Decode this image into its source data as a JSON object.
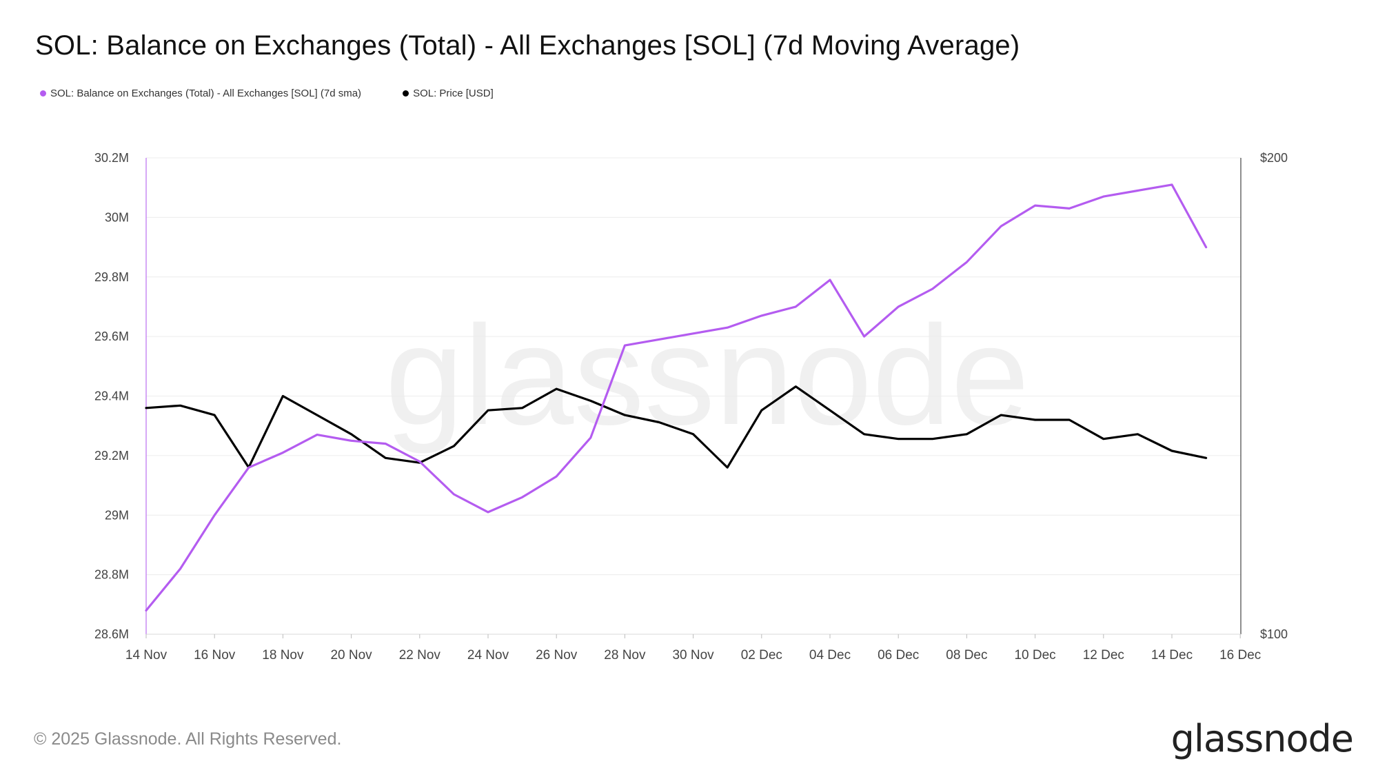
{
  "header": {
    "title": "SOL: Balance on Exchanges (Total) - All Exchanges [SOL] (7d Moving Average)"
  },
  "footer": {
    "copyright": "© 2025 Glassnode. All Rights Reserved.",
    "logo_text": "glassnode",
    "watermark": "glassnode"
  },
  "chart_data": {
    "type": "line",
    "title": "SOL: Balance on Exchanges (Total) - All Exchanges [SOL] (7d Moving Average)",
    "xlabel": "",
    "ylabel": "",
    "x": [
      "14 Nov",
      "15 Nov",
      "16 Nov",
      "17 Nov",
      "18 Nov",
      "19 Nov",
      "20 Nov",
      "21 Nov",
      "22 Nov",
      "23 Nov",
      "24 Nov",
      "25 Nov",
      "26 Nov",
      "27 Nov",
      "28 Nov",
      "29 Nov",
      "30 Nov",
      "01 Dec",
      "02 Dec",
      "03 Dec",
      "04 Dec",
      "05 Dec",
      "06 Dec",
      "07 Dec",
      "08 Dec",
      "09 Dec",
      "10 Dec",
      "11 Dec",
      "12 Dec",
      "13 Dec",
      "14 Dec",
      "15 Dec"
    ],
    "x_ticks": [
      "14 Nov",
      "16 Nov",
      "18 Nov",
      "20 Nov",
      "22 Nov",
      "24 Nov",
      "26 Nov",
      "28 Nov",
      "30 Nov",
      "02 Dec",
      "04 Dec",
      "06 Dec",
      "08 Dec",
      "10 Dec",
      "12 Dec",
      "14 Dec",
      "16 Dec"
    ],
    "y_left": {
      "min": 28.6,
      "max": 30.2,
      "ticks": [
        "28.6M",
        "28.8M",
        "29M",
        "29.2M",
        "29.4M",
        "29.6M",
        "29.8M",
        "30M",
        "30.2M"
      ],
      "tick_values": [
        28.6,
        28.8,
        29.0,
        29.2,
        29.4,
        29.6,
        29.8,
        30.0,
        30.2
      ]
    },
    "y_right": {
      "min": 100,
      "max": 200,
      "ticks": [
        "$100",
        "$200"
      ],
      "tick_values": [
        100,
        200
      ]
    },
    "series": [
      {
        "name": "SOL: Balance on Exchanges (Total) - All Exchanges [SOL] (7d sma)",
        "axis": "left",
        "unit": "M SOL",
        "color": "#b45cf0",
        "values": [
          28.68,
          28.82,
          29.0,
          29.16,
          29.21,
          29.27,
          29.25,
          29.24,
          29.18,
          29.07,
          29.01,
          29.06,
          29.13,
          29.26,
          29.57,
          29.59,
          29.61,
          29.63,
          29.67,
          29.7,
          29.79,
          29.6,
          29.7,
          29.76,
          29.85,
          29.97,
          30.04,
          30.03,
          30.07,
          30.09,
          30.11,
          29.9
        ]
      },
      {
        "name": "SOL: Price [USD]",
        "axis": "right",
        "unit": "USD",
        "color": "#000000",
        "values": [
          147.5,
          148,
          146,
          135,
          150,
          146,
          142,
          137,
          136,
          139.5,
          147,
          147.5,
          151.5,
          149,
          146,
          144.5,
          142,
          135,
          147,
          152,
          147,
          142,
          141,
          141,
          142,
          146,
          145,
          145,
          141,
          142,
          138.5,
          137
        ]
      }
    ]
  }
}
